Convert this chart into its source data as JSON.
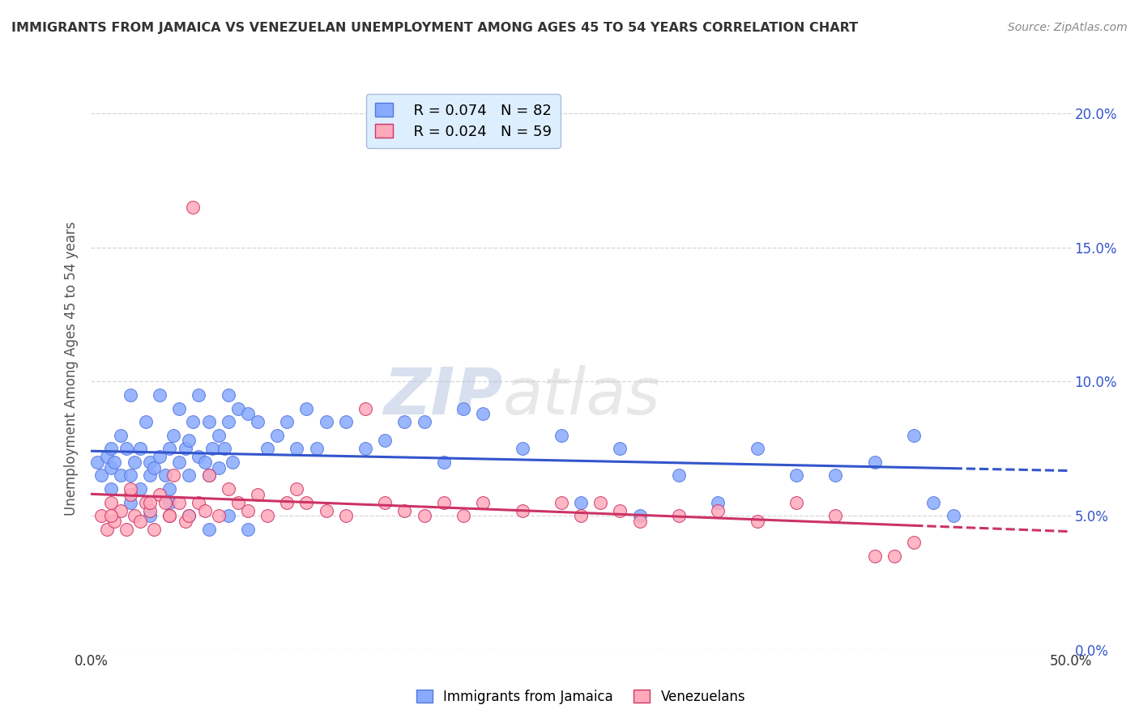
{
  "title": "IMMIGRANTS FROM JAMAICA VS VENEZUELAN UNEMPLOYMENT AMONG AGES 45 TO 54 YEARS CORRELATION CHART",
  "source": "Source: ZipAtlas.com",
  "ylabel": "Unemployment Among Ages 45 to 54 years",
  "watermark": "ZIPatlas",
  "series": [
    {
      "label": "Immigrants from Jamaica",
      "R": 0.074,
      "N": 82,
      "color": "#88aaff",
      "edge_color": "#5577dd",
      "trend_color": "#3355cc",
      "points_x": [
        0.3,
        0.5,
        0.8,
        1.0,
        1.0,
        1.2,
        1.5,
        1.5,
        1.8,
        2.0,
        2.0,
        2.2,
        2.5,
        2.5,
        2.8,
        3.0,
        3.0,
        3.2,
        3.5,
        3.5,
        3.8,
        4.0,
        4.0,
        4.2,
        4.5,
        4.5,
        4.8,
        5.0,
        5.0,
        5.2,
        5.5,
        5.5,
        5.8,
        6.0,
        6.0,
        6.2,
        6.5,
        6.5,
        6.8,
        7.0,
        7.0,
        7.2,
        7.5,
        8.0,
        8.5,
        9.0,
        9.5,
        10.0,
        10.5,
        11.0,
        11.5,
        12.0,
        13.0,
        14.0,
        15.0,
        16.0,
        17.0,
        18.0,
        19.0,
        20.0,
        22.0,
        24.0,
        25.0,
        27.0,
        28.0,
        30.0,
        32.0,
        34.0,
        36.0,
        38.0,
        40.0,
        42.0,
        43.0,
        44.0,
        1.0,
        2.0,
        3.0,
        4.0,
        5.0,
        6.0,
        7.0,
        8.0
      ],
      "points_y": [
        7.0,
        6.5,
        7.2,
        7.5,
        6.8,
        7.0,
        8.0,
        6.5,
        7.5,
        6.5,
        9.5,
        7.0,
        7.5,
        6.0,
        8.5,
        6.5,
        7.0,
        6.8,
        7.2,
        9.5,
        6.5,
        7.5,
        6.0,
        8.0,
        7.0,
        9.0,
        7.5,
        7.8,
        6.5,
        8.5,
        7.2,
        9.5,
        7.0,
        8.5,
        6.5,
        7.5,
        8.0,
        6.8,
        7.5,
        9.5,
        8.5,
        7.0,
        9.0,
        8.8,
        8.5,
        7.5,
        8.0,
        8.5,
        7.5,
        9.0,
        7.5,
        8.5,
        8.5,
        7.5,
        7.8,
        8.5,
        8.5,
        7.0,
        9.0,
        8.8,
        7.5,
        8.0,
        5.5,
        7.5,
        5.0,
        6.5,
        5.5,
        7.5,
        6.5,
        6.5,
        7.0,
        8.0,
        5.5,
        5.0,
        6.0,
        5.5,
        5.0,
        5.5,
        5.0,
        4.5,
        5.0,
        4.5
      ]
    },
    {
      "label": "Venezuelans",
      "R": 0.024,
      "N": 59,
      "color": "#ffaabb",
      "edge_color": "#cc3366",
      "trend_color": "#cc3366",
      "points_x": [
        0.5,
        0.8,
        1.0,
        1.2,
        1.5,
        1.8,
        2.0,
        2.2,
        2.5,
        2.8,
        3.0,
        3.2,
        3.5,
        3.8,
        4.0,
        4.2,
        4.5,
        4.8,
        5.0,
        5.2,
        5.5,
        5.8,
        6.0,
        6.5,
        7.0,
        7.5,
        8.0,
        8.5,
        9.0,
        10.0,
        10.5,
        11.0,
        12.0,
        13.0,
        14.0,
        15.0,
        16.0,
        17.0,
        18.0,
        19.0,
        20.0,
        22.0,
        24.0,
        25.0,
        26.0,
        27.0,
        28.0,
        30.0,
        32.0,
        34.0,
        36.0,
        38.0,
        40.0,
        41.0,
        42.0,
        1.0,
        2.0,
        3.0,
        4.0
      ],
      "points_y": [
        5.0,
        4.5,
        5.5,
        4.8,
        5.2,
        4.5,
        5.8,
        5.0,
        4.8,
        5.5,
        5.2,
        4.5,
        5.8,
        5.5,
        5.0,
        6.5,
        5.5,
        4.8,
        5.0,
        16.5,
        5.5,
        5.2,
        6.5,
        5.0,
        6.0,
        5.5,
        5.2,
        5.8,
        5.0,
        5.5,
        6.0,
        5.5,
        5.2,
        5.0,
        9.0,
        5.5,
        5.2,
        5.0,
        5.5,
        5.0,
        5.5,
        5.2,
        5.5,
        5.0,
        5.5,
        5.2,
        4.8,
        5.0,
        5.2,
        4.8,
        5.5,
        5.0,
        3.5,
        3.5,
        4.0,
        5.0,
        6.0,
        5.5,
        5.0
      ]
    }
  ],
  "xlim": [
    0,
    50
  ],
  "ylim": [
    0,
    21
  ],
  "yticks": [
    0,
    5,
    10,
    15,
    20
  ],
  "ytick_labels": [
    "0.0%",
    "5.0%",
    "10.0%",
    "15.0%",
    "20.0%"
  ],
  "xtick_left": "0.0%",
  "xtick_right": "50.0%",
  "grid_color": "#cccccc",
  "background_color": "#ffffff",
  "legend_box_color": "#ddeeff",
  "legend_border_color": "#aabbdd",
  "title_color": "#333333",
  "source_color": "#888888",
  "ylabel_color": "#555555",
  "ytick_color": "#3355cc",
  "xtick_color": "#333333"
}
